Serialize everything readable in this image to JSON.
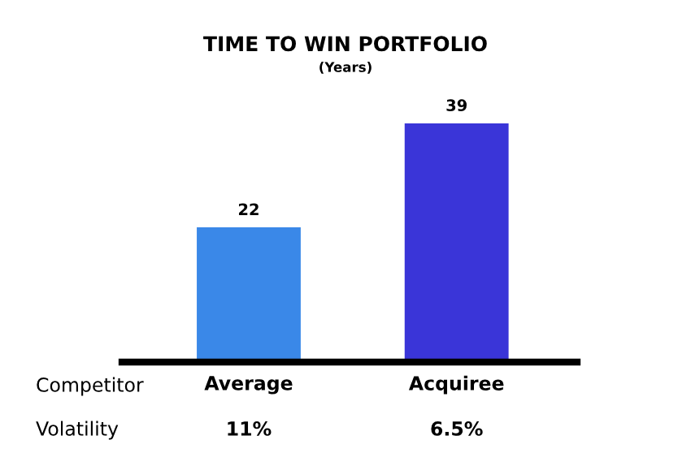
{
  "chart_data": {
    "type": "bar",
    "title": "TIME TO WIN PORTFOLIO",
    "subtitle": "(Years)",
    "xlabel": "Competitor",
    "categories": [
      "Average",
      "Acquiree"
    ],
    "values": [
      22,
      39
    ],
    "colors": [
      "#3a88e8",
      "#3a35d8"
    ],
    "data_labels": true,
    "grid": false,
    "legend": false,
    "tick_labels": "x",
    "annotations": [
      "Volatility",
      "11%",
      "6.5%"
    ]
  }
}
